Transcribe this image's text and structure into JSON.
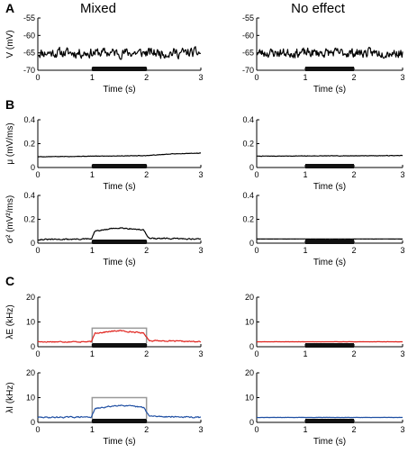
{
  "panel_letters": [
    "A",
    "B",
    "C"
  ],
  "column_titles": [
    "Mixed",
    "No effect"
  ],
  "colors": {
    "black": "#000000",
    "red": "#e0221c",
    "blue": "#1f4fa3",
    "gray": "#999999",
    "stim_bar": "#111111"
  },
  "chart_data": [
    {
      "id": "A-mixed",
      "panel": "A",
      "column": "Mixed",
      "type": "line",
      "ylabel": "V (mV)",
      "xlabel": "Time (s)",
      "xlim": [
        0,
        3
      ],
      "ylim": [
        -70,
        -55
      ],
      "xticks": [
        "0",
        "1",
        "2",
        "3"
      ],
      "yticks": [
        "-55",
        "-60",
        "-65",
        "-70"
      ],
      "stimulus_interval": [
        1,
        2
      ],
      "series": [
        {
          "color": "#000000",
          "baseline": [
            [
              0,
              -65
            ],
            [
              3,
              -65
            ]
          ],
          "noise": 2.2,
          "seed": 11
        }
      ]
    },
    {
      "id": "A-noeffect",
      "panel": "A",
      "column": "No effect",
      "type": "line",
      "ylabel": "",
      "xlabel": "Time (s)",
      "xlim": [
        0,
        3
      ],
      "ylim": [
        -70,
        -55
      ],
      "xticks": [
        "0",
        "1",
        "2",
        "3"
      ],
      "yticks": [
        "-55",
        "-60",
        "-65",
        "-70"
      ],
      "stimulus_interval": [
        1,
        2
      ],
      "series": [
        {
          "color": "#000000",
          "baseline": [
            [
              0,
              -65
            ],
            [
              3,
              -65
            ]
          ],
          "noise": 2.0,
          "seed": 23
        }
      ]
    },
    {
      "id": "B-mu-mixed",
      "panel": "B",
      "column": "Mixed",
      "type": "line",
      "ylabel": "μ (mV/ms)",
      "xlabel": "Time (s)",
      "xlim": [
        0,
        3
      ],
      "ylim": [
        0,
        0.4
      ],
      "xticks": [
        "0",
        "1",
        "2",
        "3"
      ],
      "yticks": [
        "0.4",
        "0.2",
        "0"
      ],
      "stimulus_interval": [
        1,
        2
      ],
      "series": [
        {
          "color": "#000000",
          "baseline": [
            [
              0,
              0.09
            ],
            [
              1,
              0.095
            ],
            [
              2,
              0.1
            ],
            [
              2.5,
              0.115
            ],
            [
              3,
              0.12
            ]
          ],
          "noise": 0.003,
          "seed": 5
        }
      ]
    },
    {
      "id": "B-mu-noeffect",
      "panel": "B",
      "column": "No effect",
      "type": "line",
      "ylabel": "",
      "xlabel": "Time (s)",
      "xlim": [
        0,
        3
      ],
      "ylim": [
        0,
        0.4
      ],
      "xticks": [
        "0",
        "1",
        "2",
        "3"
      ],
      "yticks": [
        "0.4",
        "0.2",
        "0"
      ],
      "stimulus_interval": [
        1,
        2
      ],
      "series": [
        {
          "color": "#000000",
          "baseline": [
            [
              0,
              0.095
            ],
            [
              3,
              0.1
            ]
          ],
          "noise": 0.003,
          "seed": 7
        }
      ]
    },
    {
      "id": "B-sigma-mixed",
      "panel": "B",
      "column": "Mixed",
      "type": "line",
      "ylabel": "σ² (mV²/ms)",
      "xlabel": "Time (s)",
      "xlim": [
        0,
        3
      ],
      "ylim": [
        0,
        0.4
      ],
      "xticks": [
        "0",
        "1",
        "2",
        "3"
      ],
      "yticks": [
        "0.4",
        "0.2",
        "0"
      ],
      "stimulus_interval": [
        1,
        2
      ],
      "series": [
        {
          "color": "#000000",
          "baseline": [
            [
              0,
              0.03
            ],
            [
              0.99,
              0.035
            ],
            [
              1.05,
              0.1
            ],
            [
              1.5,
              0.13
            ],
            [
              1.95,
              0.11
            ],
            [
              2.05,
              0.04
            ],
            [
              3,
              0.035
            ]
          ],
          "noise": 0.008,
          "seed": 31
        }
      ]
    },
    {
      "id": "B-sigma-noeffect",
      "panel": "B",
      "column": "No effect",
      "type": "line",
      "ylabel": "",
      "xlabel": "Time (s)",
      "xlim": [
        0,
        3
      ],
      "ylim": [
        0,
        0.4
      ],
      "xticks": [
        "0",
        "1",
        "2",
        "3"
      ],
      "yticks": [
        "0.4",
        "0.2",
        "0"
      ],
      "stimulus_interval": [
        1,
        2
      ],
      "series": [
        {
          "color": "#000000",
          "baseline": [
            [
              0,
              0.035
            ],
            [
              3,
              0.035
            ]
          ],
          "noise": 0.001,
          "seed": 13
        }
      ]
    },
    {
      "id": "C-lamE-mixed",
      "panel": "C",
      "column": "Mixed",
      "type": "line",
      "ylabel": "λE (kHz)",
      "xlabel": "",
      "xlim": [
        0,
        3
      ],
      "ylim": [
        0,
        20
      ],
      "xticks": [
        "0",
        "1",
        "2",
        "3"
      ],
      "yticks": [
        "20",
        "10",
        "0"
      ],
      "stimulus_interval": [
        1,
        2
      ],
      "input_rate_box": {
        "x": [
          1,
          2
        ],
        "y": 7.5
      },
      "series": [
        {
          "color": "#e0221c",
          "baseline": [
            [
              0,
              2
            ],
            [
              0.99,
              2
            ],
            [
              1.05,
              5.5
            ],
            [
              1.5,
              6.5
            ],
            [
              1.95,
              5.5
            ],
            [
              2.05,
              2.5
            ],
            [
              3,
              2
            ]
          ],
          "noise": 0.35,
          "seed": 17
        }
      ]
    },
    {
      "id": "C-lamE-noeffect",
      "panel": "C",
      "column": "No effect",
      "type": "line",
      "ylabel": "",
      "xlabel": "",
      "xlim": [
        0,
        3
      ],
      "ylim": [
        0,
        20
      ],
      "xticks": [
        "0",
        "1",
        "2",
        "3"
      ],
      "yticks": [
        "20",
        "10",
        "0"
      ],
      "stimulus_interval": [
        1,
        2
      ],
      "series": [
        {
          "color": "#e0221c",
          "baseline": [
            [
              0,
              2
            ],
            [
              3,
              2
            ]
          ],
          "noise": 0.05,
          "seed": 19
        }
      ]
    },
    {
      "id": "C-lamI-mixed",
      "panel": "C",
      "column": "Mixed",
      "type": "line",
      "ylabel": "λI (kHz)",
      "xlabel": "Time (s)",
      "xlim": [
        0,
        3
      ],
      "ylim": [
        0,
        20
      ],
      "xticks": [
        "0",
        "1",
        "2",
        "3"
      ],
      "yticks": [
        "20",
        "10",
        "0"
      ],
      "stimulus_interval": [
        1,
        2
      ],
      "input_rate_box": {
        "x": [
          1,
          2
        ],
        "y": 10
      },
      "series": [
        {
          "color": "#1f4fa3",
          "baseline": [
            [
              0,
              2
            ],
            [
              0.99,
              2.2
            ],
            [
              1.05,
              5.5
            ],
            [
              1.5,
              7
            ],
            [
              1.95,
              6
            ],
            [
              2.05,
              2.5
            ],
            [
              3,
              2
            ]
          ],
          "noise": 0.4,
          "seed": 29
        }
      ]
    },
    {
      "id": "C-lamI-noeffect",
      "panel": "C",
      "column": "No effect",
      "type": "line",
      "ylabel": "",
      "xlabel": "Time (s)",
      "xlim": [
        0,
        3
      ],
      "ylim": [
        0,
        20
      ],
      "xticks": [
        "0",
        "1",
        "2",
        "3"
      ],
      "yticks": [
        "20",
        "10",
        "0"
      ],
      "stimulus_interval": [
        1,
        2
      ],
      "series": [
        {
          "color": "#1f4fa3",
          "baseline": [
            [
              0,
              2
            ],
            [
              3,
              2
            ]
          ],
          "noise": 0.05,
          "seed": 37
        }
      ]
    }
  ]
}
